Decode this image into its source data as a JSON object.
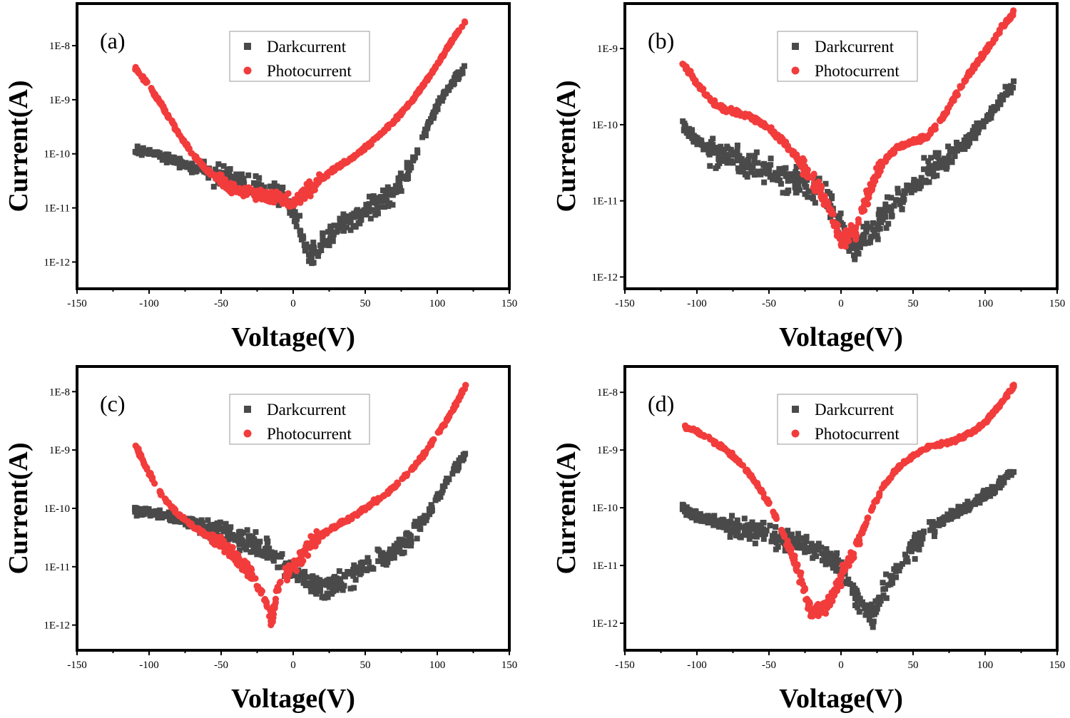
{
  "chart_data": [
    {
      "panel": "(a)",
      "type": "scatter",
      "xlabel": "Voltage(V)",
      "ylabel": "Current(A)",
      "xlim": [
        -150,
        150
      ],
      "xticks": [
        -150,
        -100,
        -50,
        0,
        50,
        100,
        150
      ],
      "ylim": [
        3.2e-13,
        6e-08
      ],
      "yticks": [
        1e-12,
        1e-11,
        1e-10,
        1e-09,
        1e-08
      ],
      "ytick_labels": [
        "1E-12",
        "1E-11",
        "1E-10",
        "1E-9",
        "1E-8"
      ],
      "legend": "top-center",
      "series": [
        {
          "name": "Darkcurrent",
          "marker": "square",
          "color": "#4a4a4a",
          "x": [
            -110,
            -100,
            -90,
            -80,
            -70,
            -60,
            -50,
            -40,
            -30,
            -20,
            -10,
            0,
            10,
            20,
            30,
            40,
            50,
            60,
            70,
            80,
            90,
            100,
            110,
            120
          ],
          "y": [
            1.2e-10,
            1.1e-10,
            9e-11,
            7e-11,
            5.5e-11,
            4.5e-11,
            3.8e-11,
            3.2e-11,
            2.6e-11,
            2.2e-11,
            1.8e-11,
            1e-11,
            1.5e-12,
            2e-12,
            4e-12,
            6e-12,
            9e-12,
            1.3e-11,
            2e-11,
            5e-11,
            2e-10,
            8e-10,
            2e-09,
            4e-09
          ]
        },
        {
          "name": "Photocurrent",
          "marker": "circle",
          "color": "#f23c3c",
          "x": [
            -110,
            -100,
            -90,
            -80,
            -70,
            -60,
            -50,
            -40,
            -30,
            -20,
            -10,
            0,
            10,
            20,
            30,
            40,
            50,
            60,
            70,
            80,
            90,
            100,
            110,
            120
          ],
          "y": [
            4e-09,
            1.8e-09,
            7e-10,
            2.5e-10,
            1e-10,
            5e-11,
            3e-11,
            2.2e-11,
            1.8e-11,
            1.6e-11,
            1.5e-11,
            1.2e-11,
            2e-11,
            3.5e-11,
            5.5e-11,
            8e-11,
            1.3e-10,
            2.2e-10,
            4e-10,
            8e-10,
            1.8e-09,
            4.5e-09,
            1.2e-08,
            3e-08
          ]
        }
      ]
    },
    {
      "panel": "(b)",
      "type": "scatter",
      "xlabel": "Voltage(V)",
      "ylabel": "Current(A)",
      "xlim": [
        -150,
        150
      ],
      "xticks": [
        -150,
        -100,
        -50,
        0,
        50,
        100,
        150
      ],
      "ylim": [
        7e-13,
        3.9e-09
      ],
      "yticks": [
        1e-12,
        1e-11,
        1e-10,
        1e-09
      ],
      "ytick_labels": [
        "1E-12",
        "1E-11",
        "1E-10",
        "1E-9"
      ],
      "legend": "top-center",
      "series": [
        {
          "name": "Darkcurrent",
          "marker": "square",
          "color": "#4a4a4a",
          "x": [
            -110,
            -100,
            -90,
            -80,
            -70,
            -60,
            -50,
            -40,
            -30,
            -20,
            -10,
            0,
            10,
            20,
            30,
            40,
            50,
            60,
            70,
            80,
            90,
            100,
            110,
            120
          ],
          "y": [
            1e-10,
            6e-11,
            4.5e-11,
            3.8e-11,
            3.2e-11,
            2.8e-11,
            2.4e-11,
            2e-11,
            1.7e-11,
            1.4e-11,
            1.1e-11,
            4e-12,
            2.5e-12,
            4e-12,
            6e-12,
            1e-11,
            1.5e-11,
            2.5e-11,
            3.5e-11,
            5e-11,
            7e-11,
            1.1e-10,
            2e-10,
            3.5e-10
          ]
        },
        {
          "name": "Photocurrent",
          "marker": "circle",
          "color": "#f23c3c",
          "x": [
            -110,
            -100,
            -90,
            -80,
            -70,
            -60,
            -50,
            -40,
            -30,
            -20,
            -10,
            0,
            10,
            20,
            30,
            40,
            50,
            60,
            70,
            80,
            90,
            100,
            110,
            120
          ],
          "y": [
            6.5e-10,
            3.5e-10,
            2e-10,
            1.6e-10,
            1.4e-10,
            1.2e-10,
            9e-11,
            6e-11,
            3.5e-11,
            2e-11,
            1e-11,
            3e-12,
            4e-12,
            1.5e-11,
            3.5e-11,
            5e-11,
            6e-11,
            7e-11,
            1.2e-10,
            2.5e-10,
            5e-10,
            9e-10,
            1.7e-09,
            3e-09
          ]
        }
      ]
    },
    {
      "panel": "(c)",
      "type": "scatter",
      "xlabel": "Voltage(V)",
      "ylabel": "Current(A)",
      "xlim": [
        -150,
        150
      ],
      "xticks": [
        -150,
        -100,
        -50,
        0,
        50,
        100,
        150
      ],
      "ylim": [
        3.7e-13,
        2.7e-08
      ],
      "yticks": [
        1e-12,
        1e-11,
        1e-10,
        1e-09,
        1e-08
      ],
      "ytick_labels": [
        "1E-12",
        "1E-11",
        "1E-10",
        "1E-9",
        "1E-8"
      ],
      "legend": "top-center",
      "series": [
        {
          "name": "Darkcurrent",
          "marker": "square",
          "color": "#4a4a4a",
          "x": [
            -110,
            -100,
            -90,
            -80,
            -70,
            -60,
            -50,
            -40,
            -30,
            -20,
            -10,
            0,
            10,
            20,
            30,
            40,
            50,
            60,
            70,
            80,
            90,
            100,
            110,
            120
          ],
          "y": [
            9e-11,
            8.5e-11,
            7.5e-11,
            6.5e-11,
            5.5e-11,
            4.5e-11,
            3.8e-11,
            3.2e-11,
            2.6e-11,
            2e-11,
            1.5e-11,
            8e-12,
            5e-12,
            4e-12,
            5e-12,
            7e-12,
            1e-11,
            1.4e-11,
            2e-11,
            3e-11,
            6e-11,
            1.5e-10,
            4e-10,
            9e-10
          ]
        },
        {
          "name": "Photocurrent",
          "marker": "circle",
          "color": "#f23c3c",
          "x": [
            -110,
            -100,
            -90,
            -80,
            -70,
            -60,
            -50,
            -40,
            -30,
            -20,
            -15,
            -10,
            0,
            10,
            20,
            30,
            40,
            50,
            60,
            70,
            80,
            90,
            100,
            110,
            120
          ],
          "y": [
            1.3e-09,
            4e-10,
            1.5e-10,
            8e-11,
            5e-11,
            3.5e-11,
            2.5e-11,
            1.5e-11,
            8e-12,
            3e-12,
            1.2e-12,
            5e-12,
            1e-11,
            2.2e-11,
            3.5e-11,
            5e-11,
            7e-11,
            1e-10,
            1.5e-10,
            2.3e-10,
            4e-10,
            8e-10,
            1.8e-09,
            4.5e-09,
            1.3e-08
          ]
        }
      ]
    },
    {
      "panel": "(d)",
      "type": "scatter",
      "xlabel": "Voltage(V)",
      "ylabel": "Current(A)",
      "xlim": [
        -150,
        150
      ],
      "xticks": [
        -150,
        -100,
        -50,
        0,
        50,
        100,
        150
      ],
      "ylim": [
        3.4e-13,
        2.8e-08
      ],
      "yticks": [
        1e-12,
        1e-11,
        1e-10,
        1e-09,
        1e-08
      ],
      "ytick_labels": [
        "1E-12",
        "1E-11",
        "1E-10",
        "1E-9",
        "1E-8"
      ],
      "legend": "top-center",
      "series": [
        {
          "name": "Darkcurrent",
          "marker": "square",
          "color": "#4a4a4a",
          "x": [
            -110,
            -100,
            -90,
            -80,
            -70,
            -60,
            -50,
            -40,
            -30,
            -20,
            -10,
            0,
            10,
            20,
            30,
            40,
            50,
            60,
            70,
            80,
            90,
            100,
            110,
            120
          ],
          "y": [
            1e-10,
            7e-11,
            6e-11,
            5e-11,
            4.3e-11,
            3.8e-11,
            3.3e-11,
            2.8e-11,
            2.4e-11,
            2e-11,
            1.5e-11,
            1e-11,
            3e-12,
            1.2e-12,
            4e-12,
            1e-11,
            2.2e-11,
            4e-11,
            6e-11,
            8e-11,
            1.1e-10,
            1.6e-10,
            2.5e-10,
            4.5e-10
          ]
        },
        {
          "name": "Photocurrent",
          "marker": "circle",
          "color": "#f23c3c",
          "x": [
            -110,
            -100,
            -90,
            -80,
            -70,
            -60,
            -50,
            -40,
            -30,
            -20,
            -10,
            0,
            10,
            20,
            30,
            40,
            50,
            60,
            70,
            80,
            90,
            100,
            110,
            120
          ],
          "y": [
            2.7e-09,
            2.1e-09,
            1.5e-09,
            1e-09,
            6e-10,
            3e-10,
            1.2e-10,
            3.5e-11,
            8e-12,
            1.5e-12,
            2e-12,
            6e-12,
            2e-11,
            8e-11,
            2.5e-10,
            5e-10,
            8e-10,
            1.1e-09,
            1.3e-09,
            1.5e-09,
            2e-09,
            3e-09,
            6e-09,
            1.3e-08
          ]
        }
      ]
    }
  ]
}
